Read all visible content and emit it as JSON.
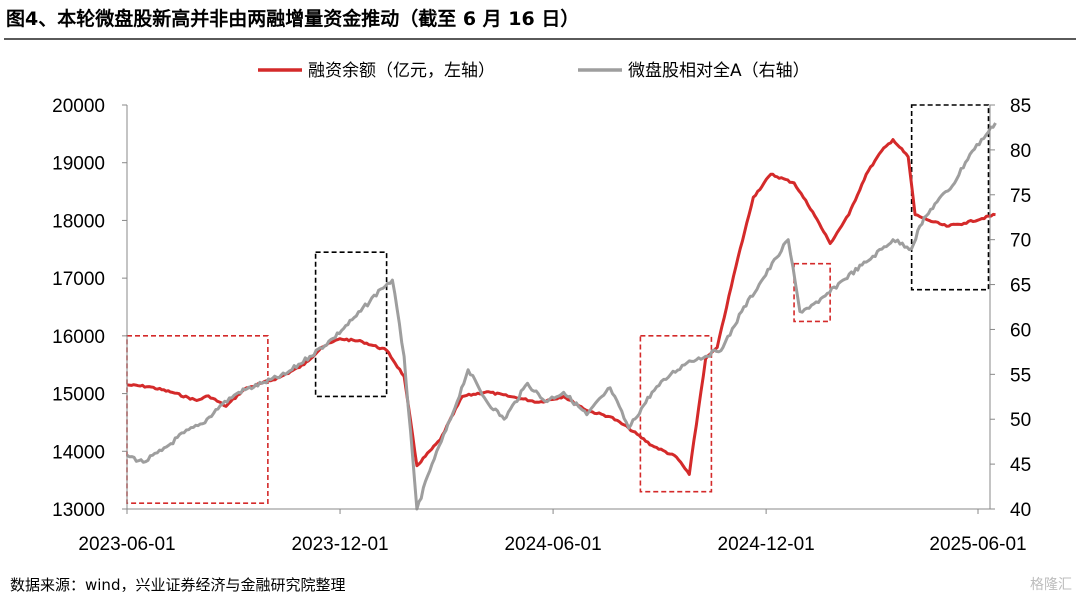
{
  "header": {
    "title": "图4、本轮微盘股新高并非由两融增量资金推动（截至 6 月 16 日）"
  },
  "footer": {
    "source": "数据来源：wind，兴业证券经济与金融研究院整理",
    "watermark": "格隆汇"
  },
  "chart_data": {
    "type": "line",
    "title": "",
    "grid": false,
    "legend_position": "top",
    "x_ticks": [
      "2023-06-01",
      "2023-12-01",
      "2024-06-01",
      "2024-12-01",
      "2025-06-01"
    ],
    "y_left": {
      "lim": [
        13000,
        20000
      ],
      "ticks": [
        13000,
        14000,
        15000,
        16000,
        17000,
        18000,
        19000,
        20000
      ]
    },
    "y_right": {
      "lim": [
        40,
        85
      ],
      "ticks": [
        40,
        45,
        50,
        55,
        60,
        65,
        70,
        75,
        80,
        85
      ]
    },
    "series": [
      {
        "name": "融资余额（亿元，左轴）",
        "axis": "left",
        "color": "#d42a2a",
        "points": [
          [
            "2023-06-01",
            15150
          ],
          [
            "2023-06-20",
            15120
          ],
          [
            "2023-07-10",
            15020
          ],
          [
            "2023-07-31",
            14880
          ],
          [
            "2023-08-10",
            14960
          ],
          [
            "2023-08-25",
            14780
          ],
          [
            "2023-09-10",
            15080
          ],
          [
            "2023-10-10",
            15280
          ],
          [
            "2023-10-31",
            15500
          ],
          [
            "2023-11-15",
            15800
          ],
          [
            "2023-12-01",
            15950
          ],
          [
            "2023-12-20",
            15900
          ],
          [
            "2024-01-10",
            15750
          ],
          [
            "2024-01-25",
            15300
          ],
          [
            "2024-02-05",
            13750
          ],
          [
            "2024-02-25",
            14200
          ],
          [
            "2024-03-15",
            14950
          ],
          [
            "2024-04-05",
            15030
          ],
          [
            "2024-04-25",
            14950
          ],
          [
            "2024-05-20",
            14850
          ],
          [
            "2024-06-10",
            14950
          ],
          [
            "2024-07-01",
            14700
          ],
          [
            "2024-07-20",
            14600
          ],
          [
            "2024-08-05",
            14400
          ],
          [
            "2024-08-25",
            14100
          ],
          [
            "2024-09-15",
            13900
          ],
          [
            "2024-09-26",
            13600
          ],
          [
            "2024-10-10",
            15600
          ],
          [
            "2024-10-20",
            15800
          ],
          [
            "2024-11-05",
            17200
          ],
          [
            "2024-11-20",
            18400
          ],
          [
            "2024-12-05",
            18800
          ],
          [
            "2024-12-25",
            18650
          ],
          [
            "2025-01-10",
            18150
          ],
          [
            "2025-01-25",
            17600
          ],
          [
            "2025-02-10",
            18100
          ],
          [
            "2025-02-25",
            18800
          ],
          [
            "2025-03-10",
            19200
          ],
          [
            "2025-03-20",
            19400
          ],
          [
            "2025-04-02",
            19100
          ],
          [
            "2025-04-08",
            18100
          ],
          [
            "2025-04-20",
            18000
          ],
          [
            "2025-05-05",
            17900
          ],
          [
            "2025-05-20",
            17950
          ],
          [
            "2025-06-16",
            18100
          ]
        ]
      },
      {
        "name": "微盘股相对全A（右轴）",
        "axis": "right",
        "color": "#9e9e9e",
        "points": [
          [
            "2023-06-01",
            46.0
          ],
          [
            "2023-06-15",
            45.2
          ],
          [
            "2023-07-01",
            46.5
          ],
          [
            "2023-07-20",
            48.5
          ],
          [
            "2023-08-05",
            49.5
          ],
          [
            "2023-08-20",
            51.5
          ],
          [
            "2023-09-05",
            53.0
          ],
          [
            "2023-09-25",
            54.0
          ],
          [
            "2023-10-15",
            55.0
          ],
          [
            "2023-11-05",
            57.0
          ],
          [
            "2023-11-25",
            59.0
          ],
          [
            "2023-12-15",
            61.5
          ],
          [
            "2024-01-05",
            64.5
          ],
          [
            "2024-01-15",
            65.5
          ],
          [
            "2024-01-25",
            57.0
          ],
          [
            "2024-02-05",
            40.0
          ],
          [
            "2024-02-18",
            45.0
          ],
          [
            "2024-03-05",
            50.0
          ],
          [
            "2024-03-20",
            55.5
          ],
          [
            "2024-04-05",
            52.0
          ],
          [
            "2024-04-20",
            50.0
          ],
          [
            "2024-05-10",
            54.0
          ],
          [
            "2024-05-25",
            52.0
          ],
          [
            "2024-06-10",
            53.0
          ],
          [
            "2024-06-30",
            50.5
          ],
          [
            "2024-07-20",
            53.5
          ],
          [
            "2024-08-05",
            49.0
          ],
          [
            "2024-08-25",
            53.0
          ],
          [
            "2024-09-10",
            55.0
          ],
          [
            "2024-09-26",
            56.5
          ],
          [
            "2024-10-10",
            57.0
          ],
          [
            "2024-10-25",
            58.0
          ],
          [
            "2024-11-10",
            62.0
          ],
          [
            "2024-11-25",
            65.0
          ],
          [
            "2024-12-10",
            68.0
          ],
          [
            "2024-12-20",
            70.0
          ],
          [
            "2024-12-30",
            62.0
          ],
          [
            "2025-01-15",
            63.0
          ],
          [
            "2025-02-05",
            65.5
          ],
          [
            "2025-02-25",
            67.5
          ],
          [
            "2025-03-20",
            70.0
          ],
          [
            "2025-04-05",
            69.0
          ],
          [
            "2025-04-12",
            71.5
          ],
          [
            "2025-04-25",
            74.0
          ],
          [
            "2025-05-10",
            76.0
          ],
          [
            "2025-05-25",
            79.5
          ],
          [
            "2025-06-10",
            82.0
          ],
          [
            "2025-06-16",
            83.0
          ]
        ]
      }
    ],
    "highlight_boxes": [
      {
        "style": "dashed",
        "color": "#d42a2a",
        "x": [
          "2023-06-01",
          "2023-09-30"
        ],
        "axis": "left",
        "y": [
          13100,
          16000
        ]
      },
      {
        "style": "dashed",
        "color": "#000000",
        "x": [
          "2023-11-10",
          "2024-01-10"
        ],
        "axis": "left",
        "y": [
          14950,
          17450
        ]
      },
      {
        "style": "dashed",
        "color": "#d42a2a",
        "x": [
          "2024-08-15",
          "2024-10-15"
        ],
        "axis": "left",
        "y": [
          13300,
          16000
        ]
      },
      {
        "style": "dashed",
        "color": "#d42a2a",
        "x": [
          "2024-12-25",
          "2025-01-25"
        ],
        "axis": "left",
        "y": [
          16250,
          17250
        ]
      },
      {
        "style": "dashed",
        "color": "#000000",
        "x": [
          "2025-04-05",
          "2025-06-10"
        ],
        "axis": "left",
        "y": [
          16800,
          20000
        ]
      }
    ]
  }
}
